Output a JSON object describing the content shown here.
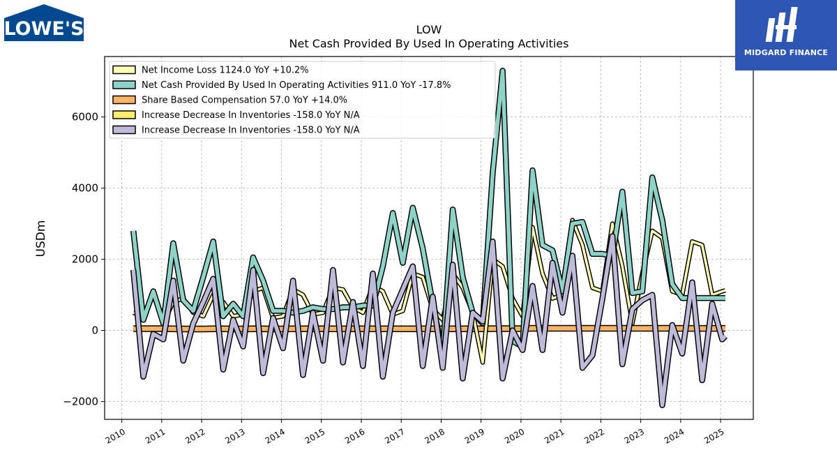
{
  "header": {
    "ticker": "LOW",
    "title": "Net Cash Provided By Used In Operating Activities"
  },
  "logos": {
    "left_brand": "LOWE'S",
    "right_brand": "MIDGARD FINANCE",
    "left_color": "#004990",
    "right_color": "#2d56b3"
  },
  "chart_data": {
    "type": "line",
    "ylabel": "USDm",
    "ylim": [
      -2500,
      7700
    ],
    "xlim": [
      2009.57,
      2025.82
    ],
    "yticks": [
      -2000,
      0,
      2000,
      4000,
      6000
    ],
    "ytick_labels": [
      "−2000",
      "0",
      "2000",
      "4000",
      "6000"
    ],
    "xticks": [
      2010,
      2011,
      2012,
      2013,
      2014,
      2015,
      2016,
      2017,
      2018,
      2019,
      2020,
      2021,
      2022,
      2023,
      2024,
      2025
    ],
    "xtick_labels": [
      "2010",
      "2011",
      "2012",
      "2013",
      "2014",
      "2015",
      "2016",
      "2017",
      "2018",
      "2019",
      "2020",
      "2021",
      "2022",
      "2023",
      "2024",
      "2025"
    ],
    "grid": true,
    "legend_position": "top-left",
    "x_quarters": [
      2010.29,
      2010.54,
      2010.79,
      2011.04,
      2011.29,
      2011.54,
      2011.79,
      2012.04,
      2012.29,
      2012.54,
      2012.79,
      2013.04,
      2013.29,
      2013.54,
      2013.79,
      2014.04,
      2014.29,
      2014.54,
      2014.79,
      2015.04,
      2015.29,
      2015.54,
      2015.79,
      2016.04,
      2016.29,
      2016.54,
      2016.79,
      2017.04,
      2017.29,
      2017.54,
      2017.79,
      2018.04,
      2018.29,
      2018.54,
      2018.79,
      2019.04,
      2019.29,
      2019.54,
      2019.79,
      2020.04,
      2020.29,
      2020.54,
      2020.79,
      2021.04,
      2021.29,
      2021.54,
      2021.79,
      2022.04,
      2022.29,
      2022.54,
      2022.79,
      2023.04,
      2023.29,
      2023.54,
      2023.79,
      2024.04,
      2024.29,
      2024.54,
      2024.79,
      2025.04,
      2025.12
    ],
    "series": [
      {
        "name": "Net Income Loss",
        "legend_label": "Net Income Loss  1124.0 YoY +10.2%",
        "color": "#ffffb3",
        "width": 3.5,
        "values": [
          500,
          400,
          1000,
          200,
          800,
          900,
          500,
          400,
          1000,
          800,
          400,
          450,
          1100,
          1200,
          350,
          400,
          1150,
          1000,
          450,
          500,
          1200,
          1150,
          650,
          500,
          1250,
          1100,
          450,
          550,
          1600,
          1500,
          600,
          300,
          1600,
          1200,
          500,
          -900,
          2000,
          1800,
          900,
          400,
          2900,
          1600,
          900,
          1000,
          3100,
          2400,
          1200,
          1100,
          3000,
          1800,
          200,
          1600,
          2800,
          2600,
          1100,
          1000,
          2500,
          2400,
          1000,
          1100,
          1124
        ]
      },
      {
        "name": "Net Cash Provided By Used In Operating Activities",
        "legend_label": "Net Cash Provided By Used In Operating Activities  911.0 YoY -17.8%",
        "color": "#8dd3c7",
        "width": 5.5,
        "values": [
          2800,
          300,
          1100,
          200,
          2450,
          850,
          550,
          1500,
          2500,
          400,
          750,
          400,
          2050,
          1400,
          550,
          550,
          500,
          550,
          650,
          600,
          600,
          650,
          650,
          700,
          700,
          1800,
          3300,
          1900,
          3450,
          2300,
          750,
          -650,
          3400,
          1500,
          500,
          200,
          4400,
          7300,
          -300,
          -450,
          4500,
          2400,
          2250,
          1100,
          3000,
          3050,
          2150,
          2150,
          2100,
          3900,
          1050,
          1100,
          4300,
          3100,
          1300,
          911,
          911,
          911,
          911,
          911,
          911
        ]
      },
      {
        "name": "Share Based Compensation",
        "legend_label": "Share Based Compensation  57.0 YoY +14.0%",
        "color": "#fdb462",
        "width": 6.5,
        "values": [
          50,
          50,
          50,
          50,
          45,
          40,
          40,
          40,
          45,
          45,
          40,
          40,
          45,
          45,
          40,
          40,
          45,
          45,
          45,
          45,
          45,
          45,
          45,
          45,
          45,
          45,
          45,
          45,
          45,
          45,
          45,
          45,
          45,
          45,
          45,
          45,
          50,
          50,
          50,
          50,
          60,
          60,
          60,
          60,
          60,
          60,
          60,
          60,
          60,
          60,
          60,
          60,
          60,
          60,
          60,
          57,
          57,
          57,
          57,
          57,
          57
        ]
      },
      {
        "name": "Increase Decrease In Inventories",
        "legend_label": "Increase Decrease In Inventories  -158.0 YoY N/A",
        "color": "#ffed6f",
        "width": 3.0,
        "values": [
          1700,
          -1300,
          -100,
          -250,
          1400,
          -850,
          200,
          800,
          1450,
          -1100,
          300,
          -450,
          1700,
          -1200,
          350,
          -500,
          1400,
          -1250,
          500,
          -850,
          1700,
          -900,
          800,
          -1000,
          1600,
          -1300,
          500,
          1150,
          1800,
          -1000,
          950,
          -1050,
          1850,
          -1350,
          500,
          250,
          2500,
          -1350,
          0,
          -550,
          1250,
          -550,
          1900,
          500,
          2100,
          -1050,
          -700,
          900,
          2650,
          -950,
          600,
          850,
          1000,
          -2100,
          150,
          -650,
          1350,
          -1400,
          750,
          -250,
          -158
        ]
      },
      {
        "name": "Increase Decrease In Inventories",
        "legend_label": "Increase Decrease In Inventories  -158.0 YoY N/A",
        "color": "#bebada",
        "width": 5.5,
        "values": [
          1700,
          -1300,
          -100,
          -250,
          1400,
          -850,
          200,
          800,
          1450,
          -1100,
          300,
          -450,
          1700,
          -1200,
          350,
          -500,
          1400,
          -1250,
          500,
          -850,
          1700,
          -900,
          800,
          -1000,
          1600,
          -1300,
          500,
          1150,
          1800,
          -1000,
          950,
          -1050,
          1850,
          -1350,
          500,
          250,
          2500,
          -1350,
          0,
          -550,
          1250,
          -550,
          1900,
          500,
          2100,
          -1050,
          -700,
          900,
          2650,
          -950,
          600,
          850,
          1000,
          -2100,
          150,
          -650,
          1350,
          -1400,
          750,
          -250,
          -158
        ]
      }
    ]
  }
}
